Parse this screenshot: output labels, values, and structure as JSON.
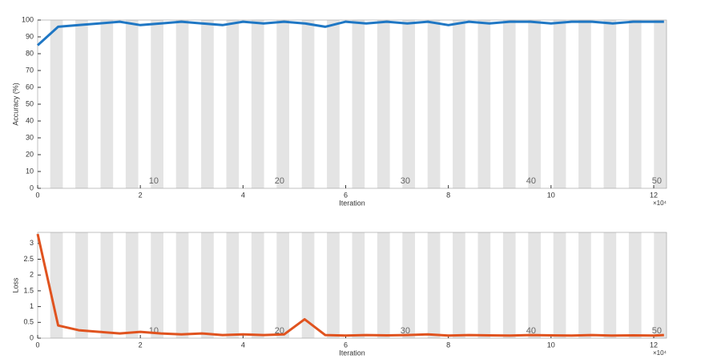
{
  "chart_data": [
    {
      "type": "line",
      "ylabel": "Accuracy (%)",
      "xlabel": "Iteration",
      "x_multiplier": "×10⁴",
      "xlim": [
        0,
        12.25
      ],
      "xticks": [
        0,
        2,
        4,
        6,
        8,
        10,
        12
      ],
      "ylim": [
        0,
        100
      ],
      "yticks": [
        0,
        10,
        20,
        30,
        40,
        50,
        60,
        70,
        80,
        90,
        100
      ],
      "epochs": 50,
      "epoch_labels": [
        10,
        20,
        30,
        40,
        50
      ],
      "color": "#1f77c4",
      "x": [
        0,
        0.4,
        0.8,
        1.2,
        1.6,
        2.0,
        2.4,
        2.8,
        3.2,
        3.6,
        4.0,
        4.4,
        4.8,
        5.2,
        5.6,
        6.0,
        6.4,
        6.8,
        7.2,
        7.6,
        8.0,
        8.4,
        8.8,
        9.2,
        9.6,
        10.0,
        10.4,
        10.8,
        11.2,
        11.6,
        12.0,
        12.2
      ],
      "values": [
        85,
        96,
        97,
        98,
        99,
        97,
        98,
        99,
        98,
        97,
        99,
        98,
        99,
        98,
        96,
        99,
        98,
        99,
        98,
        99,
        97,
        99,
        98,
        99,
        99,
        98,
        99,
        99,
        98,
        99,
        99,
        99
      ]
    },
    {
      "type": "line",
      "ylabel": "Loss",
      "xlabel": "Iteration",
      "x_multiplier": "×10⁴",
      "xlim": [
        0,
        12.25
      ],
      "xticks": [
        0,
        2,
        4,
        6,
        8,
        10,
        12
      ],
      "ylim": [
        0,
        3.35
      ],
      "yticks": [
        0,
        0.5,
        1,
        1.5,
        2,
        2.5,
        3
      ],
      "epochs": 50,
      "epoch_labels": [
        10,
        20,
        30,
        40,
        50
      ],
      "color": "#e0531f",
      "x": [
        0,
        0.4,
        0.8,
        1.2,
        1.6,
        2.0,
        2.4,
        2.8,
        3.2,
        3.6,
        4.0,
        4.4,
        4.8,
        5.2,
        5.6,
        6.0,
        6.4,
        6.8,
        7.2,
        7.6,
        8.0,
        8.4,
        8.8,
        9.2,
        9.6,
        10.0,
        10.4,
        10.8,
        11.2,
        11.6,
        12.0,
        12.2
      ],
      "values": [
        3.3,
        0.4,
        0.25,
        0.2,
        0.15,
        0.2,
        0.15,
        0.12,
        0.15,
        0.1,
        0.12,
        0.1,
        0.12,
        0.6,
        0.1,
        0.08,
        0.1,
        0.09,
        0.1,
        0.12,
        0.08,
        0.1,
        0.09,
        0.08,
        0.1,
        0.09,
        0.08,
        0.1,
        0.08,
        0.09,
        0.08,
        0.1
      ]
    }
  ]
}
